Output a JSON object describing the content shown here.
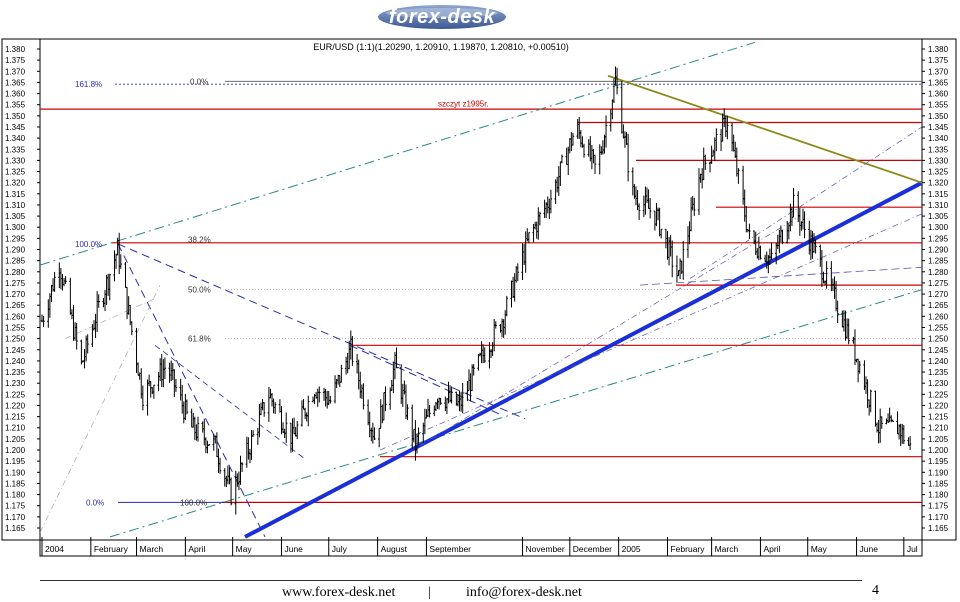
{
  "logo": {
    "text": "forex-desk"
  },
  "footer": {
    "website": "www.forex-desk.net",
    "separator": "|",
    "email": "info@forex-desk.net",
    "page_number": "4"
  },
  "chart_data": {
    "type": "candlestick",
    "title": "EUR/USD (1:1)(1.20290, 1.20910, 1.19870, 1.20810, +0.00510)",
    "xlabel": "",
    "ylabel": "",
    "ylim": [
      1.16,
      1.383
    ],
    "x_range": [
      "2004-01-01",
      "2005-07-10"
    ],
    "y_ticks": [
      "1.165",
      "1.170",
      "1.175",
      "1.180",
      "1.185",
      "1.190",
      "1.195",
      "1.200",
      "1.205",
      "1.210",
      "1.215",
      "1.220",
      "1.225",
      "1.230",
      "1.235",
      "1.240",
      "1.245",
      "1.250",
      "1.255",
      "1.260",
      "1.265",
      "1.270",
      "1.275",
      "1.280",
      "1.285",
      "1.290",
      "1.295",
      "1.300",
      "1.305",
      "1.310",
      "1.315",
      "1.320",
      "1.325",
      "1.330",
      "1.335",
      "1.340",
      "1.345",
      "1.350",
      "1.355",
      "1.360",
      "1.365",
      "1.370",
      "1.375",
      "1.380"
    ],
    "x_ticks": [
      {
        "label": "2004",
        "date": "2004-01-01"
      },
      {
        "label": "February",
        "date": "2004-02-01"
      },
      {
        "label": "March",
        "date": "2004-03-01"
      },
      {
        "label": "April",
        "date": "2004-04-01"
      },
      {
        "label": "May",
        "date": "2004-05-01"
      },
      {
        "label": "June",
        "date": "2004-06-01"
      },
      {
        "label": "July",
        "date": "2004-07-01"
      },
      {
        "label": "August",
        "date": "2004-08-01"
      },
      {
        "label": "September",
        "date": "2004-09-01"
      },
      {
        "label": "November",
        "date": "2004-11-01"
      },
      {
        "label": "December",
        "date": "2004-12-01"
      },
      {
        "label": "2005",
        "date": "2005-01-01"
      },
      {
        "label": "February",
        "date": "2005-02-01"
      },
      {
        "label": "March",
        "date": "2005-03-01"
      },
      {
        "label": "April",
        "date": "2005-04-01"
      },
      {
        "label": "May",
        "date": "2005-05-01"
      },
      {
        "label": "June",
        "date": "2005-06-01"
      },
      {
        "label": "Jul",
        "date": "2005-07-01"
      }
    ],
    "price_path": [
      {
        "date": "2004-01-01",
        "price": 1.258
      },
      {
        "date": "2004-01-12",
        "price": 1.284
      },
      {
        "date": "2004-01-26",
        "price": 1.238
      },
      {
        "date": "2004-02-05",
        "price": 1.262
      },
      {
        "date": "2004-02-18",
        "price": 1.29
      },
      {
        "date": "2004-03-05",
        "price": 1.225
      },
      {
        "date": "2004-03-20",
        "price": 1.238
      },
      {
        "date": "2004-04-05",
        "price": 1.21
      },
      {
        "date": "2004-04-20",
        "price": 1.202
      },
      {
        "date": "2004-04-30",
        "price": 1.18
      },
      {
        "date": "2004-05-12",
        "price": 1.202
      },
      {
        "date": "2004-05-24",
        "price": 1.225
      },
      {
        "date": "2004-06-08",
        "price": 1.205
      },
      {
        "date": "2004-06-22",
        "price": 1.228
      },
      {
        "date": "2004-07-02",
        "price": 1.222
      },
      {
        "date": "2004-07-15",
        "price": 1.245
      },
      {
        "date": "2004-07-30",
        "price": 1.206
      },
      {
        "date": "2004-08-12",
        "price": 1.238
      },
      {
        "date": "2004-08-25",
        "price": 1.202
      },
      {
        "date": "2004-09-08",
        "price": 1.225
      },
      {
        "date": "2004-09-22",
        "price": 1.22
      },
      {
        "date": "2004-10-05",
        "price": 1.24
      },
      {
        "date": "2004-10-20",
        "price": 1.26
      },
      {
        "date": "2004-11-05",
        "price": 1.295
      },
      {
        "date": "2004-11-20",
        "price": 1.315
      },
      {
        "date": "2004-12-05",
        "price": 1.345
      },
      {
        "date": "2004-12-18",
        "price": 1.325
      },
      {
        "date": "2004-12-30",
        "price": 1.366
      },
      {
        "date": "2005-01-10",
        "price": 1.315
      },
      {
        "date": "2005-01-25",
        "price": 1.305
      },
      {
        "date": "2005-02-08",
        "price": 1.277
      },
      {
        "date": "2005-02-22",
        "price": 1.325
      },
      {
        "date": "2005-03-11",
        "price": 1.348
      },
      {
        "date": "2005-03-25",
        "price": 1.295
      },
      {
        "date": "2005-04-08",
        "price": 1.285
      },
      {
        "date": "2005-04-22",
        "price": 1.31
      },
      {
        "date": "2005-05-05",
        "price": 1.29
      },
      {
        "date": "2005-05-20",
        "price": 1.265
      },
      {
        "date": "2005-06-03",
        "price": 1.238
      },
      {
        "date": "2005-06-15",
        "price": 1.21
      },
      {
        "date": "2005-06-28",
        "price": 1.21
      },
      {
        "date": "2005-07-05",
        "price": 1.201
      }
    ],
    "fibonacci_labels": [
      {
        "text": "161.8%",
        "price": 1.3642
      },
      {
        "text": "0.0%",
        "price": 1.3655
      },
      {
        "text": "100.0%",
        "price": 1.2925
      },
      {
        "text": "38.2%",
        "price": 1.2945
      },
      {
        "text": "50.0%",
        "price": 1.272
      },
      {
        "text": "61.8%",
        "price": 1.25
      },
      {
        "text": "0.0%",
        "price": 1.1765
      },
      {
        "text": "100.0%",
        "price": 1.1765
      }
    ],
    "annotations": [
      {
        "text": "szczyt z1995r.",
        "price": 1.356
      }
    ],
    "horizontal_levels": [
      1.353,
      1.347,
      1.33,
      1.309,
      1.293,
      1.274,
      1.247,
      1.197,
      1.1765
    ],
    "legend": "none",
    "grid": false,
    "colors": {
      "candle": "#000000",
      "level": "#cc0000",
      "fib": "#2a2ab0",
      "trend": "#1a2fd8",
      "resistance": "#8a8a1a",
      "channel": "#2a8a8a"
    }
  }
}
